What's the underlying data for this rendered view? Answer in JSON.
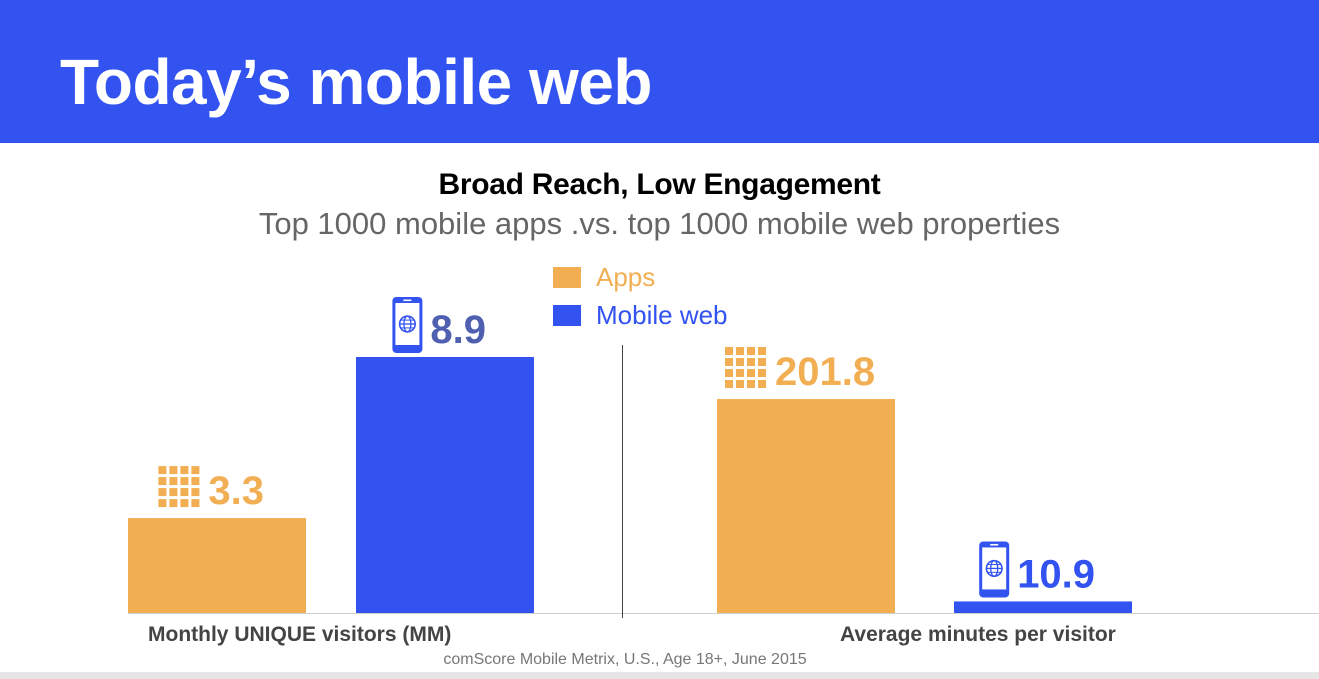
{
  "header": {
    "title": "Today’s mobile web"
  },
  "colors": {
    "header": "#3253f0",
    "apps": "#f2ae53",
    "mobile_web": "#3253f0",
    "mobile_web_label": "#5060b0"
  },
  "icons": {
    "apps": "app-grid-icon",
    "mobile_web": "phone-globe-icon"
  },
  "legend": [
    {
      "label": "Apps",
      "color": "#f2ae53"
    },
    {
      "label": "Mobile web",
      "color": "#3253f0"
    }
  ],
  "source": "comScore Mobile Metrix, U.S., Age 18+, June 2015",
  "chart_data": {
    "type": "bar",
    "title": "Broad Reach, Low Engagement",
    "subtitle": "Top 1000 mobile apps .vs. top 1000 mobile web properties",
    "categories": [
      "Monthly UNIQUE visitors (MM)",
      "Average minutes per visitor"
    ],
    "series": [
      {
        "name": "Apps",
        "values": [
          3.3,
          201.8
        ],
        "labels": [
          "3.3",
          "201.8"
        ]
      },
      {
        "name": "Mobile web",
        "values": [
          8.9,
          10.9
        ],
        "labels": [
          "8.9",
          "10.9"
        ]
      }
    ],
    "grid": false,
    "legend_position": "top-center",
    "panel_max": [
      8.9,
      201.8
    ]
  }
}
